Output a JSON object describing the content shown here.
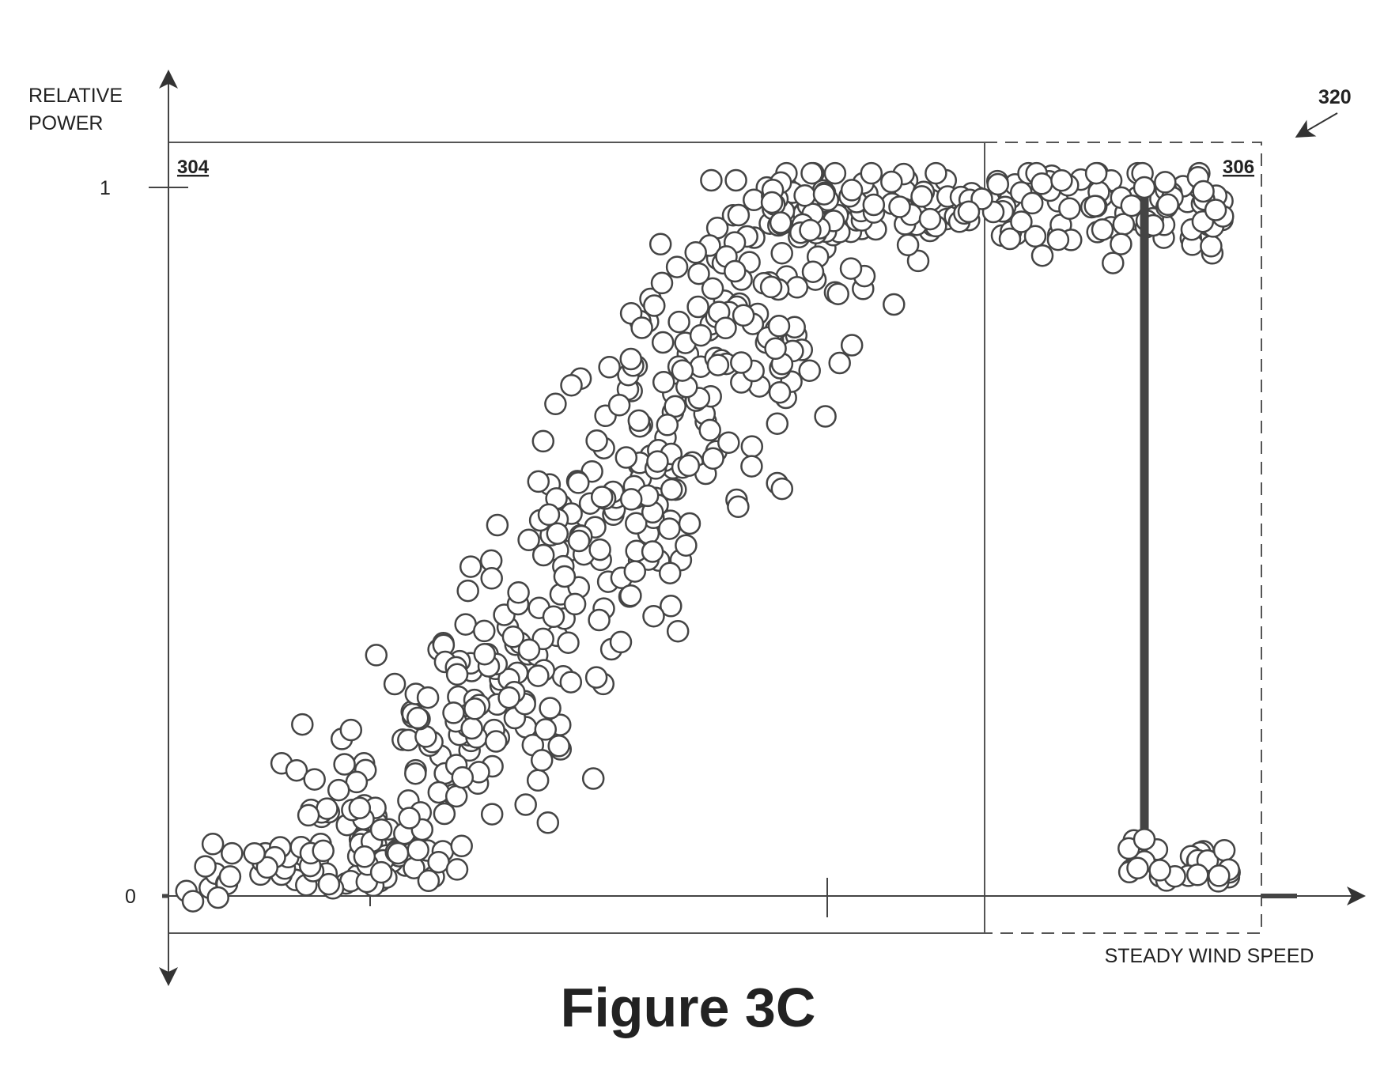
{
  "figure": {
    "title": "Figure 3C",
    "reference_number": "320"
  },
  "chart_data": {
    "type": "scatter",
    "title": "",
    "xlabel": "STEADY WIND SPEED",
    "ylabel_lines": [
      "RELATIVE",
      "POWER"
    ],
    "y_ticks": [
      {
        "value": 0,
        "label": "0"
      },
      {
        "value": 1,
        "label": "1"
      }
    ],
    "region_labels": [
      {
        "id": "region-304",
        "label": "304"
      },
      {
        "id": "region-306",
        "label": "306"
      }
    ],
    "cut_out_speed": 1.476,
    "x_tick_marks": [
      0.333,
      1.0
    ],
    "regions": {
      "solid_box_x": [
        0,
        1.237
      ],
      "dashed_box_x": [
        1.237,
        1.653
      ]
    },
    "xlim": [
      0,
      1.653
    ],
    "ylim": [
      -0.052,
      1.064
    ],
    "series": [
      {
        "name": "",
        "clusters": [
          {
            "region": "cut-in",
            "count": 45,
            "x_range": [
              0.02,
              0.43
            ],
            "y_center_at_start": 0.02,
            "y_center_at_end": 0.06,
            "spread": 0.025
          },
          {
            "region": "ramp",
            "count": 420,
            "x_from": 0.3,
            "x_to": 0.99,
            "y_from": 0.04,
            "y_to": 1.0,
            "spread_x": 0.09
          },
          {
            "region": "rated",
            "count": 170,
            "x_range": [
              0.9,
              1.6
            ],
            "y_center": 0.98,
            "spread": 0.035
          },
          {
            "region": "cut-out",
            "count": 26,
            "x_range": [
              1.45,
              1.62
            ],
            "y_center": 0.02,
            "spread": 0.03
          }
        ]
      }
    ],
    "grid": false,
    "legend": "none"
  }
}
